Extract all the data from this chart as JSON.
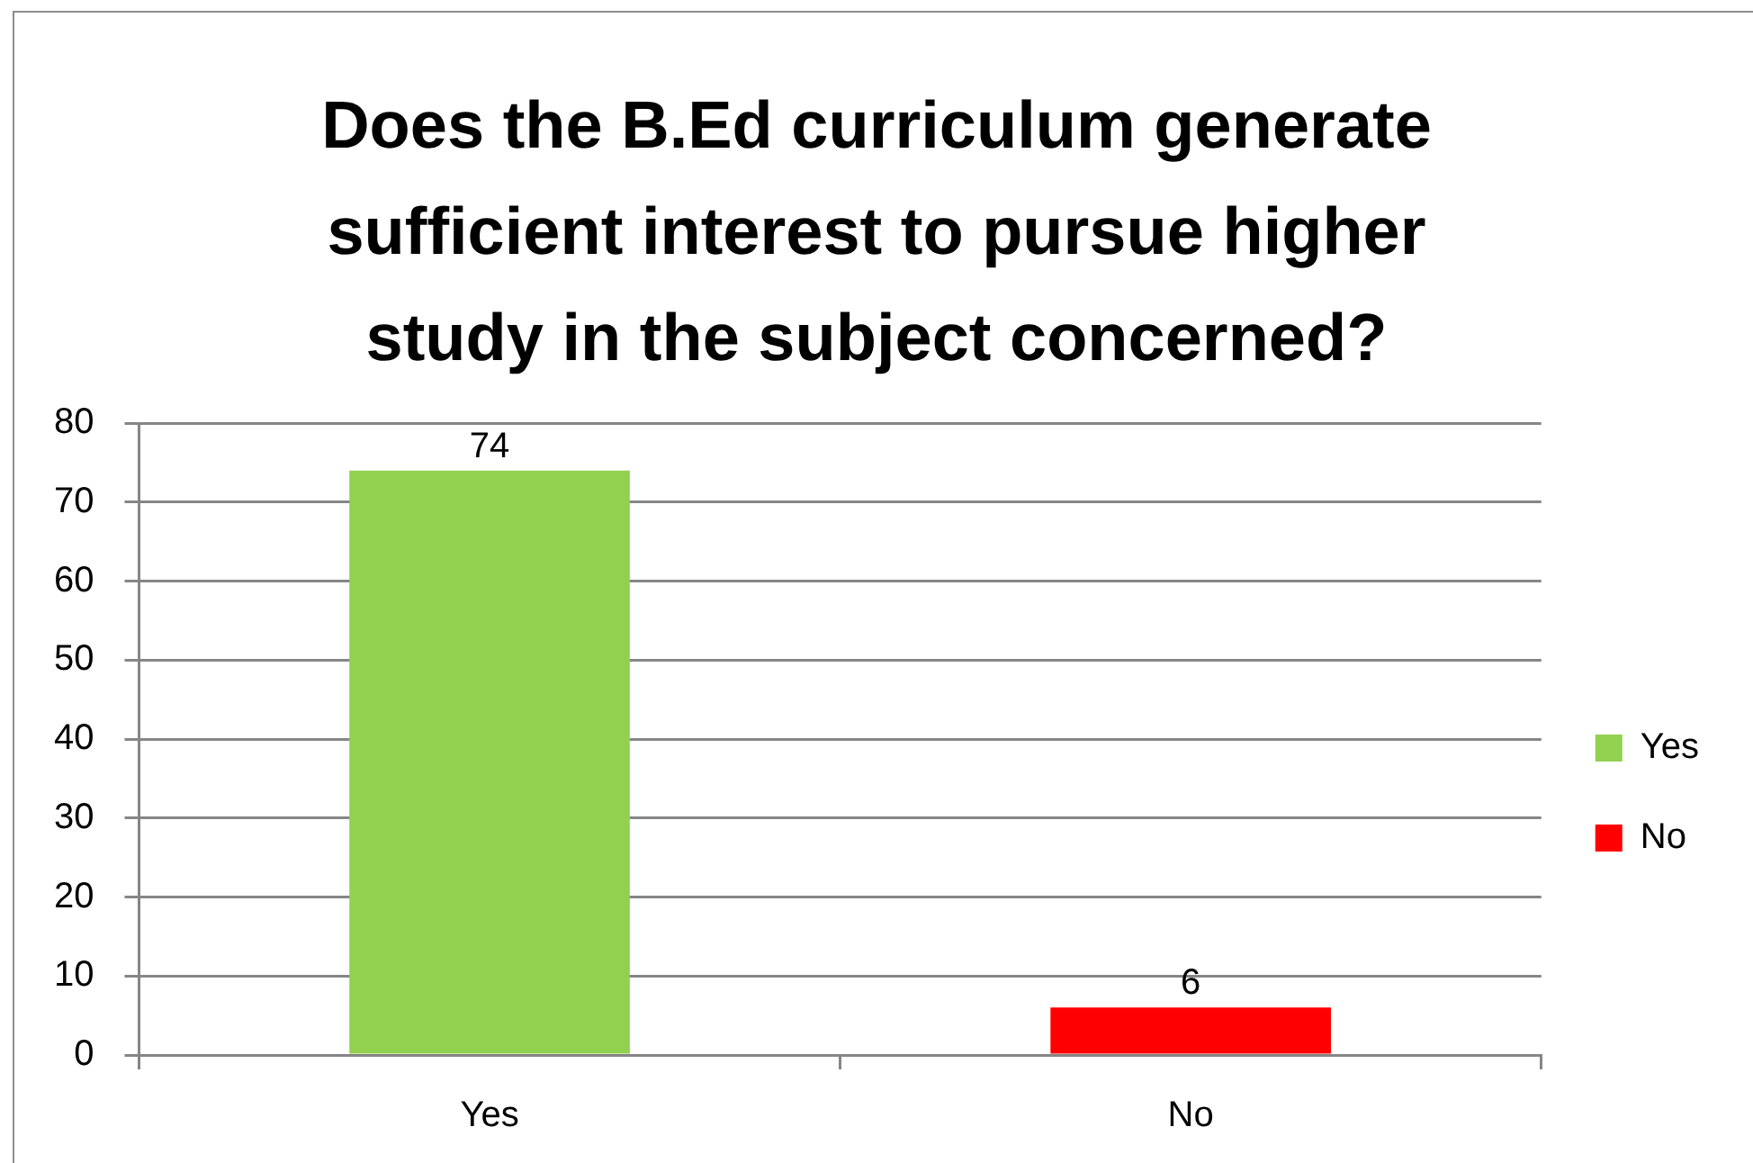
{
  "chart_data": {
    "type": "bar",
    "title": "Does the B.Ed curriculum generate sufficient interest to pursue higher study in the subject concerned?",
    "categories": [
      "Yes",
      "No"
    ],
    "series": [
      {
        "name": "Yes",
        "color": "#92d050",
        "values": [
          74,
          null
        ]
      },
      {
        "name": "No",
        "color": "#ff0000",
        "values": [
          null,
          6
        ]
      }
    ],
    "ylim": [
      0,
      80
    ],
    "yticks": [
      0,
      10,
      20,
      30,
      40,
      50,
      60,
      70,
      80
    ],
    "grid": "y",
    "legend": "right",
    "data_labels": true
  }
}
